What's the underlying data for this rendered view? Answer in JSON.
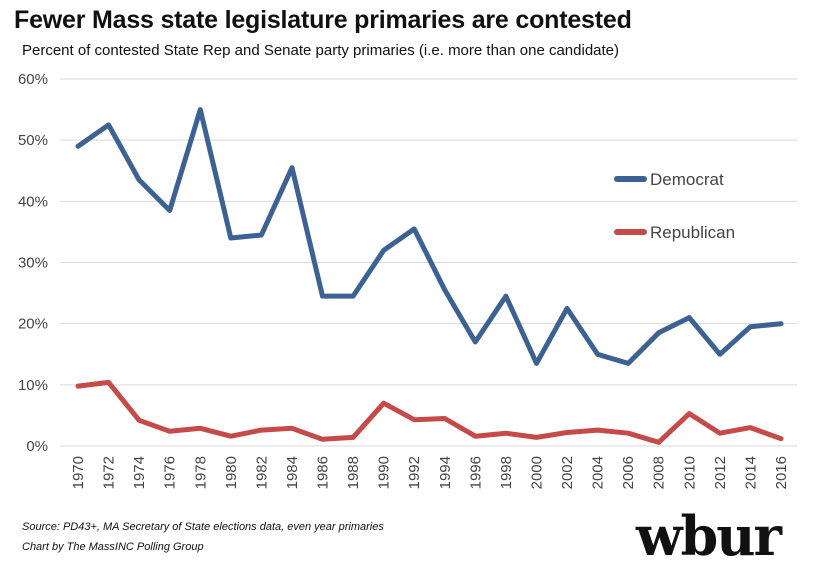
{
  "title": "Fewer Mass state legislature primaries are contested",
  "subtitle": "Percent of contested State Rep and Senate party primaries (i.e. more than one candidate)",
  "source": "Source: PD43+, MA Secretary of State elections data, even year primaries",
  "credit": "Chart by The MassINC Polling Group",
  "logo": "wbur",
  "chart_data": {
    "type": "line",
    "x": [
      1970,
      1972,
      1974,
      1976,
      1978,
      1980,
      1982,
      1984,
      1986,
      1988,
      1990,
      1992,
      1994,
      1996,
      1998,
      2000,
      2002,
      2004,
      2006,
      2008,
      2010,
      2012,
      2014,
      2016
    ],
    "ylim": [
      0,
      60
    ],
    "yticks": [
      "0%",
      "10%",
      "20%",
      "30%",
      "40%",
      "50%",
      "60%"
    ],
    "grid": true,
    "legend": "right",
    "series": [
      {
        "name": "Democrat",
        "color": "#3c6193",
        "values": [
          49,
          52.5,
          43.5,
          38.5,
          55,
          34,
          34.5,
          45.5,
          24.5,
          24.5,
          32,
          35.5,
          25.5,
          17,
          24.5,
          13.5,
          22.5,
          15,
          13.5,
          18.5,
          21,
          15,
          19.5,
          20
        ]
      },
      {
        "name": "Republican",
        "color": "#c74a4a",
        "values": [
          9.8,
          10.4,
          4.2,
          2.4,
          2.9,
          1.6,
          2.6,
          2.9,
          1.1,
          1.4,
          7.0,
          4.3,
          4.5,
          1.6,
          2.1,
          1.4,
          2.2,
          2.6,
          2.1,
          0.6,
          5.3,
          2.1,
          3.0,
          1.2
        ]
      }
    ]
  }
}
